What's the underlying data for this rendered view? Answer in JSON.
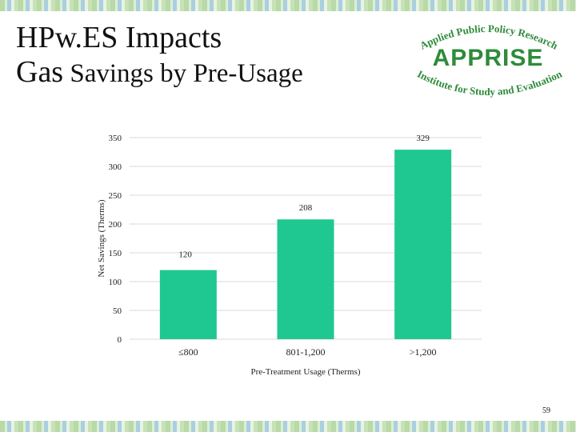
{
  "slide": {
    "title_line1": "HPw.ES Impacts",
    "title_line2_big": "Gas",
    "title_line2_rest": " Savings by Pre-Usage",
    "page_number": "59"
  },
  "logo": {
    "top_arc": "Applied Public Policy Research",
    "name": "APPRISE",
    "bottom_arc": "Institute for Study and Evaluation",
    "color": "#2e8b3a"
  },
  "chart_data": {
    "type": "bar",
    "categories": [
      "≤800",
      "801-1,200",
      ">1,200"
    ],
    "values": [
      120,
      208,
      329
    ],
    "data_labels": [
      "120",
      "208",
      "329"
    ],
    "xlabel": "Pre-Treatment Usage (Therms)",
    "ylabel": "Net Savings (Therms)",
    "ylim": [
      0,
      350
    ],
    "yticks": [
      0,
      50,
      100,
      150,
      200,
      250,
      300,
      350
    ],
    "grid": true,
    "bar_color": "#1fc890",
    "grid_color": "#d9d9d9"
  }
}
